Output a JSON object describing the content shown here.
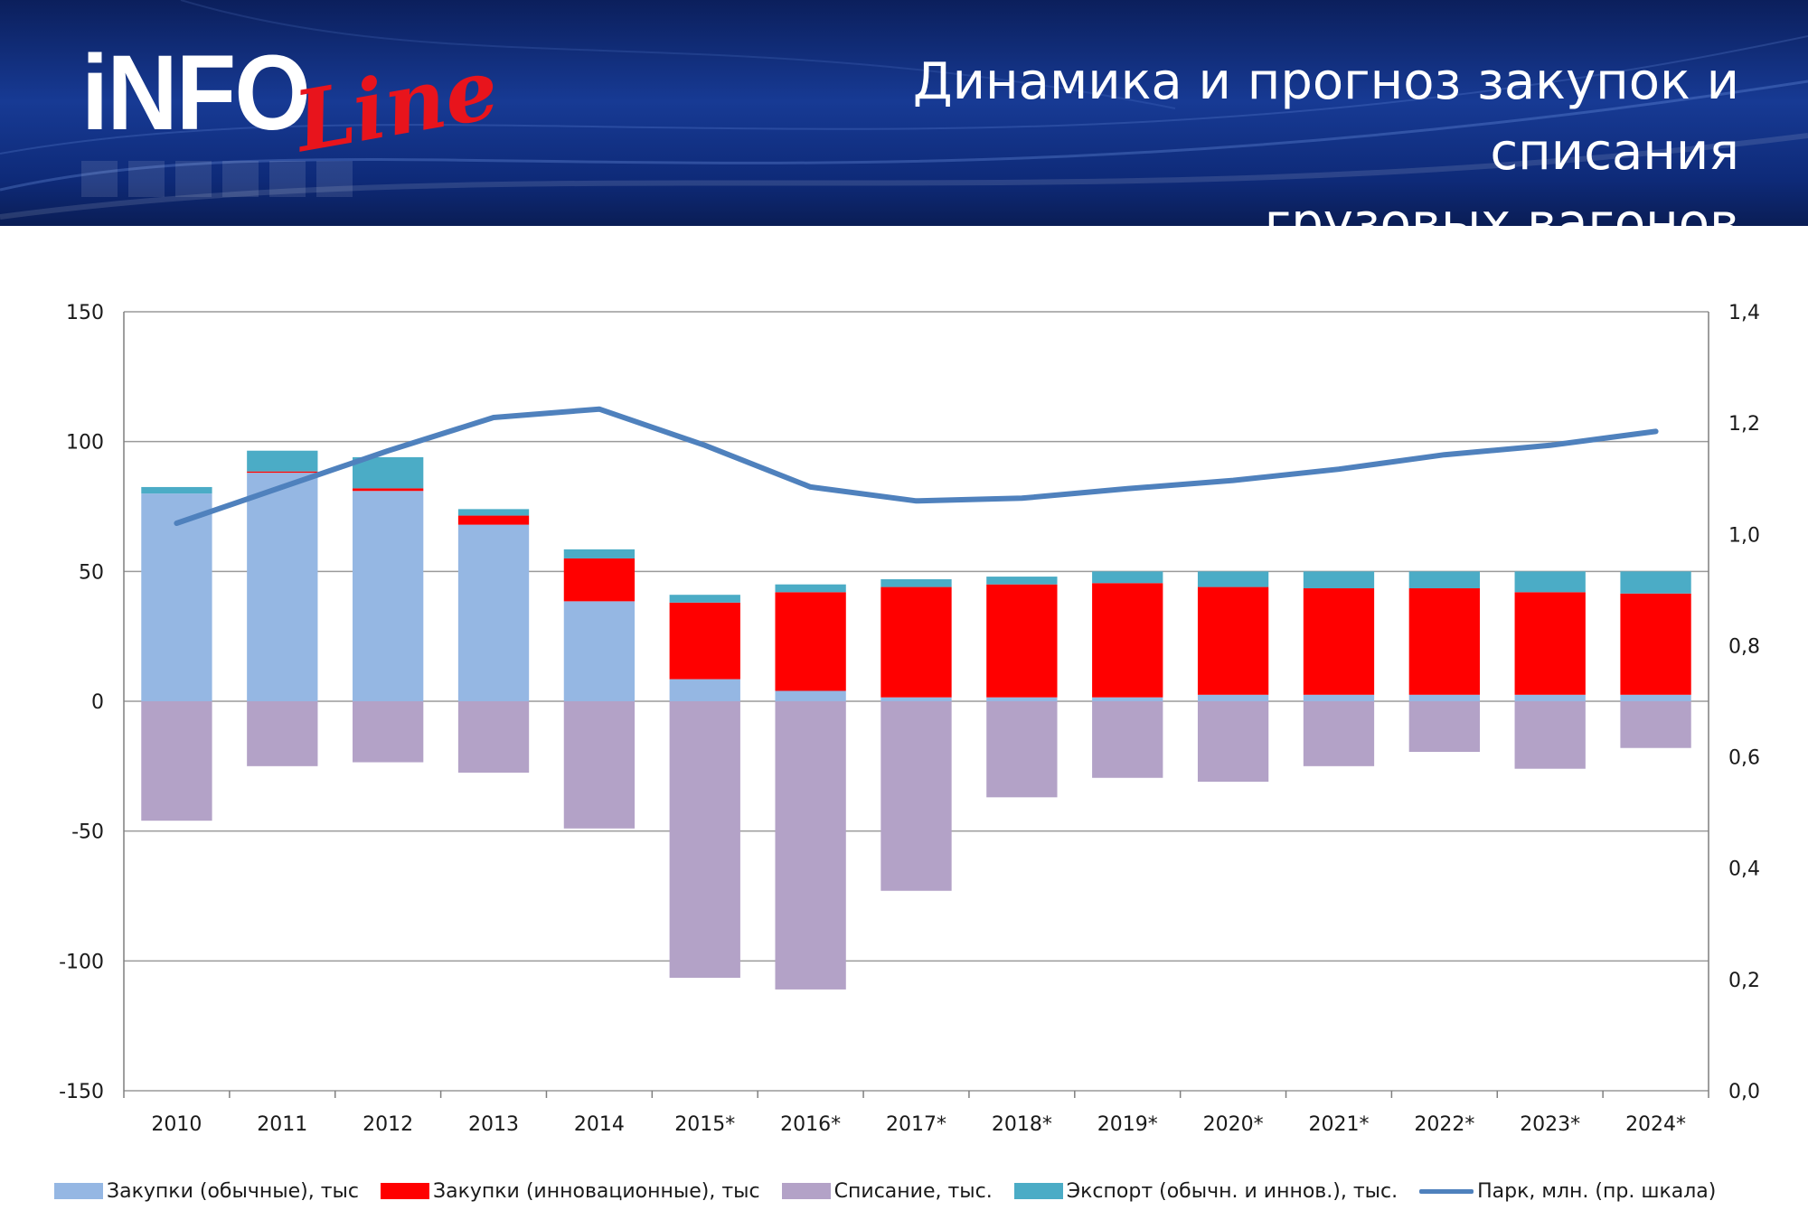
{
  "header": {
    "logo_text": "iNFO",
    "logo_script": "Line",
    "title": "Динамика и прогноз закупок и списания\nгрузовых вагонов"
  },
  "colors": {
    "regular": "#95b7e3",
    "innovative": "#ff0000",
    "writeoff": "#b3a2c7",
    "export": "#4bacc6",
    "park": "#4f81bd",
    "grid": "#9a9a9a"
  },
  "chart_data": {
    "type": "bar",
    "stacked": true,
    "categories": [
      "2010",
      "2011",
      "2012",
      "2013",
      "2014",
      "2015*",
      "2016*",
      "2017*",
      "2018*",
      "2019*",
      "2020*",
      "2021*",
      "2022*",
      "2023*",
      "2024*"
    ],
    "series": [
      {
        "name": "Закупки (обычные), тыс",
        "values": [
          80,
          88,
          81,
          68,
          38.5,
          8.5,
          4,
          1.5,
          1.5,
          1.5,
          2.5,
          2.5,
          2.5,
          2.5,
          2.5
        ]
      },
      {
        "name": "Закупки (инновационные), тыс",
        "values": [
          0,
          0.5,
          1,
          3.5,
          16.5,
          29.5,
          38,
          42.5,
          43.5,
          44,
          41.5,
          41,
          41,
          39.5,
          39
        ]
      },
      {
        "name": "Списание, тыс.",
        "values": [
          -46,
          -25,
          -23.5,
          -27.5,
          -49,
          -106.5,
          -111,
          -73,
          -37,
          -29.5,
          -31,
          -25,
          -19.5,
          -26,
          -18
        ]
      },
      {
        "name": "Экспорт (обычн. и иннов.), тыс.",
        "values": [
          2.5,
          8,
          12,
          2.5,
          3.5,
          3,
          3,
          3,
          3,
          4.5,
          6,
          6.5,
          6.5,
          8,
          8.5
        ]
      },
      {
        "name": "Парк, млн. (пр. шкала)",
        "type": "line",
        "axis": "right",
        "values": [
          1.02,
          1.085,
          1.15,
          1.21,
          1.225,
          1.16,
          1.085,
          1.06,
          1.065,
          1.082,
          1.097,
          1.117,
          1.143,
          1.16,
          1.185
        ]
      }
    ],
    "ylim": [
      -150,
      150
    ],
    "yticks": [
      "150",
      "100",
      "50",
      "0",
      "-50",
      "-100",
      "-150"
    ],
    "y2lim": [
      0,
      1.4
    ],
    "y2ticks": [
      "1,4",
      "1,2",
      "1,0",
      "0,8",
      "0,6",
      "0,4",
      "0,2",
      "0,0"
    ],
    "grid": true,
    "legend_position": "bottom"
  }
}
